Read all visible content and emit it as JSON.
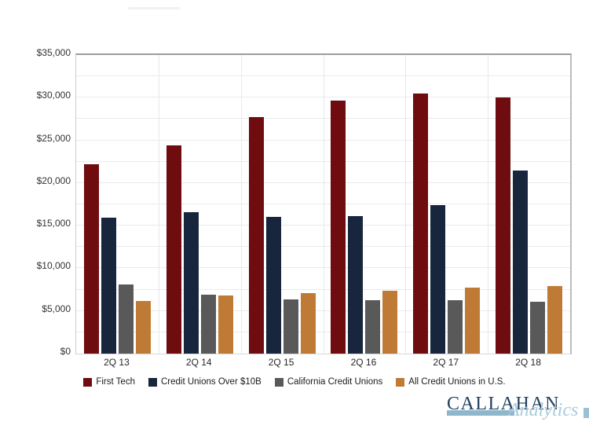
{
  "chart_data": {
    "type": "bar",
    "title": "",
    "categories": [
      "2Q 13",
      "2Q 14",
      "2Q 15",
      "2Q 16",
      "2Q 17",
      "2Q 18"
    ],
    "series": [
      {
        "name": "First Tech",
        "color": "#6E0C10",
        "values": [
          22200,
          24400,
          27700,
          29700,
          30500,
          30000
        ]
      },
      {
        "name": "Credit Unions Over $10B",
        "color": "#17263C",
        "values": [
          15900,
          16600,
          16000,
          16100,
          17400,
          21500
        ]
      },
      {
        "name": "California Credit Unions",
        "color": "#595959",
        "values": [
          8100,
          6900,
          6400,
          6300,
          6300,
          6100
        ]
      },
      {
        "name": "All Credit Unions in U.S.",
        "color": "#BF7B35",
        "values": [
          6200,
          6800,
          7100,
          7400,
          7700,
          7900
        ]
      }
    ],
    "ylim": [
      0,
      35000
    ],
    "y_tick_step": 5000,
    "y_minor_step": 2500,
    "y_tick_labels": [
      "$0",
      "$5,000",
      "$10,000",
      "$15,000",
      "$20,000",
      "$25,000",
      "$30,000",
      "$35,000"
    ],
    "grid": true,
    "legend_position": "bottom"
  },
  "logo": {
    "name": "CALLAHAN",
    "subtitle": "Analytics",
    "navy": "#22405F",
    "light_blue": "#8FB7CC",
    "script_blue": "#A9CBDC"
  }
}
